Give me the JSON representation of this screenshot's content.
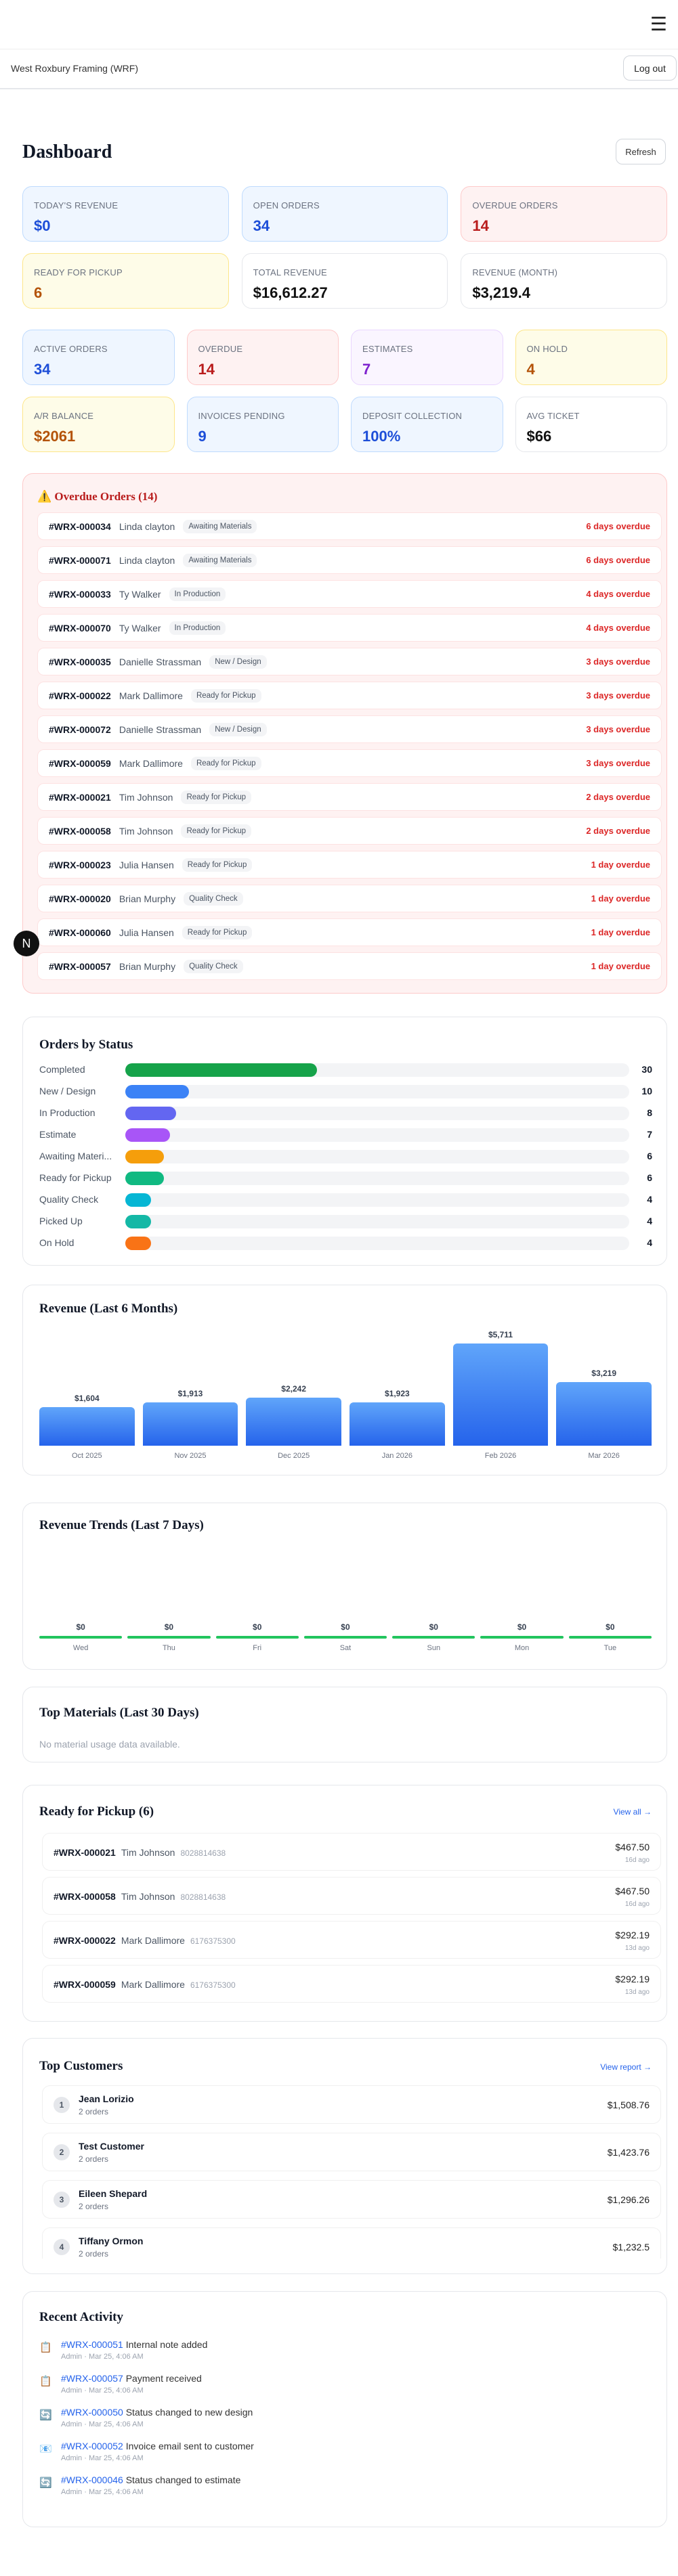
{
  "header": {
    "menu_icon": "hamburger-icon",
    "org_name": "West Roxbury Framing (WRF)",
    "logout_label": "Log out"
  },
  "dashboard": {
    "title": "Dashboard",
    "refresh_label": "Refresh"
  },
  "kpis_primary": [
    {
      "label": "Today's Revenue",
      "value": "$0",
      "tone": "blue"
    },
    {
      "label": "Open Orders",
      "value": "34",
      "tone": "blue"
    },
    {
      "label": "Overdue Orders",
      "value": "14",
      "tone": "red"
    },
    {
      "label": "Ready for Pickup",
      "value": "6",
      "tone": "yellow"
    },
    {
      "label": "Total Revenue",
      "value": "$16,612.27",
      "tone": "white"
    },
    {
      "label": "Revenue (Month)",
      "value": "$3,219.4",
      "tone": "white"
    }
  ],
  "kpis_secondary": [
    {
      "label": "Active Orders",
      "value": "34",
      "tone": "blue"
    },
    {
      "label": "Overdue",
      "value": "14",
      "tone": "red"
    },
    {
      "label": "Estimates",
      "value": "7",
      "tone": "purple"
    },
    {
      "label": "On Hold",
      "value": "4",
      "tone": "yellow"
    },
    {
      "label": "A/R Balance",
      "value": "$2061",
      "tone": "yellow"
    },
    {
      "label": "Invoices Pending",
      "value": "9",
      "tone": "blue"
    },
    {
      "label": "Deposit Collection",
      "value": "100%",
      "tone": "blue"
    },
    {
      "label": "Avg Ticket",
      "value": "$66",
      "tone": "white"
    }
  ],
  "overdue": {
    "title": "⚠️ Overdue Orders (14)",
    "rows": [
      {
        "id": "#WRX-000034",
        "customer": "Linda clayton",
        "status": "Awaiting Materials",
        "overdue": "6 days overdue"
      },
      {
        "id": "#WRX-000071",
        "customer": "Linda clayton",
        "status": "Awaiting Materials",
        "overdue": "6 days overdue"
      },
      {
        "id": "#WRX-000033",
        "customer": "Ty Walker",
        "status": "In Production",
        "overdue": "4 days overdue"
      },
      {
        "id": "#WRX-000070",
        "customer": "Ty Walker",
        "status": "In Production",
        "overdue": "4 days overdue"
      },
      {
        "id": "#WRX-000035",
        "customer": "Danielle Strassman",
        "status": "New / Design",
        "overdue": "3 days overdue"
      },
      {
        "id": "#WRX-000022",
        "customer": "Mark Dallimore",
        "status": "Ready for Pickup",
        "overdue": "3 days overdue"
      },
      {
        "id": "#WRX-000072",
        "customer": "Danielle Strassman",
        "status": "New / Design",
        "overdue": "3 days overdue"
      },
      {
        "id": "#WRX-000059",
        "customer": "Mark Dallimore",
        "status": "Ready for Pickup",
        "overdue": "3 days overdue"
      },
      {
        "id": "#WRX-000021",
        "customer": "Tim Johnson",
        "status": "Ready for Pickup",
        "overdue": "2 days overdue"
      },
      {
        "id": "#WRX-000058",
        "customer": "Tim Johnson",
        "status": "Ready for Pickup",
        "overdue": "2 days overdue"
      },
      {
        "id": "#WRX-000023",
        "customer": "Julia Hansen",
        "status": "Ready for Pickup",
        "overdue": "1 day overdue"
      },
      {
        "id": "#WRX-000020",
        "customer": "Brian Murphy",
        "status": "Quality Check",
        "overdue": "1 day overdue"
      },
      {
        "id": "#WRX-000060",
        "customer": "Julia Hansen",
        "status": "Ready for Pickup",
        "overdue": "1 day overdue"
      },
      {
        "id": "#WRX-000057",
        "customer": "Brian Murphy",
        "status": "Quality Check",
        "overdue": "1 day overdue"
      }
    ]
  },
  "chart_data": [
    {
      "type": "bar",
      "title": "Orders by Status",
      "orientation": "horizontal",
      "categories": [
        "Completed",
        "New / Design",
        "In Production",
        "Estimate",
        "Awaiting Materi...",
        "Ready for Pickup",
        "Quality Check",
        "Picked Up",
        "On Hold"
      ],
      "values": [
        30,
        10,
        8,
        7,
        6,
        6,
        4,
        4,
        4
      ],
      "colors": [
        "#16a34a",
        "#3b82f6",
        "#6366f1",
        "#a855f7",
        "#f59e0b",
        "#10b981",
        "#06b6d4",
        "#14b8a6",
        "#f97316"
      ]
    },
    {
      "type": "bar",
      "title": "Revenue (Last 6 Months)",
      "categories": [
        "Oct 2025",
        "Nov 2025",
        "Dec 2025",
        "Jan 2026",
        "Feb 2026",
        "Mar 2026"
      ],
      "values": [
        1604,
        1913,
        2242,
        1923,
        5711,
        3219
      ],
      "value_labels": [
        "$1,604",
        "$1,913",
        "$2,242",
        "$1,923",
        "$5,711",
        "$3,219"
      ],
      "color": "#3b82f6"
    },
    {
      "type": "bar",
      "title": "Revenue Trends (Last 7 Days)",
      "categories": [
        "Wed",
        "Thu",
        "Fri",
        "Sat",
        "Sun",
        "Mon",
        "Tue"
      ],
      "values": [
        0,
        0,
        0,
        0,
        0,
        0,
        0
      ],
      "value_labels": [
        "$0",
        "$0",
        "$0",
        "$0",
        "$0",
        "$0",
        "$0"
      ],
      "color": "#22c55e"
    }
  ],
  "materials": {
    "title": "Top Materials (Last 30 Days)",
    "empty": "No material usage data available."
  },
  "pickup": {
    "title": "Ready for Pickup (6)",
    "view_all": "View all →",
    "rows": [
      {
        "id": "#WRX-000021",
        "customer": "Tim Johnson",
        "phone": "8028814638",
        "amount": "$467.50",
        "age": "16d ago"
      },
      {
        "id": "#WRX-000058",
        "customer": "Tim Johnson",
        "phone": "8028814638",
        "amount": "$467.50",
        "age": "16d ago"
      },
      {
        "id": "#WRX-000022",
        "customer": "Mark Dallimore",
        "phone": "6176375300",
        "amount": "$292.19",
        "age": "13d ago"
      },
      {
        "id": "#WRX-000059",
        "customer": "Mark Dallimore",
        "phone": "6176375300",
        "amount": "$292.19",
        "age": "13d ago"
      }
    ]
  },
  "customers": {
    "title": "Top Customers",
    "view_report": "View report →",
    "rows": [
      {
        "rank": "1",
        "name": "Jean Lorizio",
        "orders": "2 orders",
        "total": "$1,508.76"
      },
      {
        "rank": "2",
        "name": "Test Customer",
        "orders": "2 orders",
        "total": "$1,423.76"
      },
      {
        "rank": "3",
        "name": "Eileen Shepard",
        "orders": "2 orders",
        "total": "$1,296.26"
      },
      {
        "rank": "4",
        "name": "Tiffany Ormon",
        "orders": "2 orders",
        "total": "$1,232.5"
      }
    ]
  },
  "activity": {
    "title": "Recent Activity",
    "items": [
      {
        "icon": "clipboard-icon",
        "glyph": "📋",
        "order": "#WRX-000051",
        "text": "Internal note added",
        "meta": "Admin · Mar 25, 4:06 AM"
      },
      {
        "icon": "clipboard-icon",
        "glyph": "📋",
        "order": "#WRX-000057",
        "text": "Payment received",
        "meta": "Admin · Mar 25, 4:06 AM"
      },
      {
        "icon": "refresh-icon",
        "glyph": "🔄",
        "order": "#WRX-000050",
        "text": "Status changed to new design",
        "meta": "Admin · Mar 25, 4:06 AM"
      },
      {
        "icon": "email-icon",
        "glyph": "📧",
        "order": "#WRX-000052",
        "text": "Invoice email sent to customer",
        "meta": "Admin · Mar 25, 4:06 AM"
      },
      {
        "icon": "refresh-icon",
        "glyph": "🔄",
        "order": "#WRX-000046",
        "text": "Status changed to estimate",
        "meta": "Admin · Mar 25, 4:06 AM"
      }
    ]
  },
  "dev_badge": "N"
}
